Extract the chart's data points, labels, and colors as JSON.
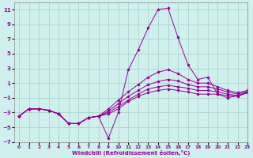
{
  "xlabel": "Windchill (Refroidissement éolien,°C)",
  "background_color": "#cff0ec",
  "grid_color": "#aad4ce",
  "line_color": "#990099",
  "xlim": [
    -0.5,
    23
  ],
  "ylim": [
    -7,
    12
  ],
  "xticks": [
    0,
    1,
    2,
    3,
    4,
    5,
    6,
    7,
    8,
    9,
    10,
    11,
    12,
    13,
    14,
    15,
    16,
    17,
    18,
    19,
    20,
    21,
    22,
    23
  ],
  "yticks": [
    -7,
    -5,
    -3,
    -1,
    1,
    3,
    5,
    7,
    9,
    11
  ],
  "series": [
    [
      -3.5,
      -2.5,
      -2.5,
      -2.7,
      -3.2,
      -4.5,
      -4.5,
      -3.7,
      -3.5,
      -6.5,
      -3.0,
      2.8,
      5.5,
      8.5,
      11.0,
      11.2,
      7.2,
      3.5,
      1.5,
      1.8,
      -0.5,
      -1.0,
      -0.7,
      -0.3
    ],
    [
      -3.5,
      -2.5,
      -2.5,
      -2.7,
      -3.2,
      -4.5,
      -4.5,
      -3.7,
      -3.5,
      -3.2,
      -2.5,
      -1.5,
      -0.8,
      -0.3,
      0.0,
      0.2,
      0.0,
      -0.2,
      -0.5,
      -0.5,
      -0.5,
      -0.7,
      -0.8,
      -0.3
    ],
    [
      -3.5,
      -2.5,
      -2.5,
      -2.7,
      -3.2,
      -4.5,
      -4.5,
      -3.7,
      -3.5,
      -3.0,
      -2.2,
      -1.3,
      -0.5,
      0.2,
      0.5,
      0.7,
      0.5,
      0.3,
      0.0,
      0.0,
      -0.2,
      -0.5,
      -0.7,
      -0.2
    ],
    [
      -3.5,
      -2.5,
      -2.5,
      -2.7,
      -3.2,
      -4.5,
      -4.5,
      -3.7,
      -3.5,
      -2.8,
      -1.8,
      -0.8,
      0.0,
      0.8,
      1.2,
      1.5,
      1.3,
      0.8,
      0.5,
      0.5,
      0.2,
      -0.2,
      -0.5,
      -0.1
    ],
    [
      -3.5,
      -2.5,
      -2.5,
      -2.7,
      -3.2,
      -4.5,
      -4.5,
      -3.7,
      -3.5,
      -2.5,
      -1.3,
      -0.2,
      0.8,
      1.8,
      2.5,
      2.8,
      2.3,
      1.5,
      1.0,
      1.0,
      0.5,
      0.0,
      -0.3,
      0.0
    ]
  ]
}
